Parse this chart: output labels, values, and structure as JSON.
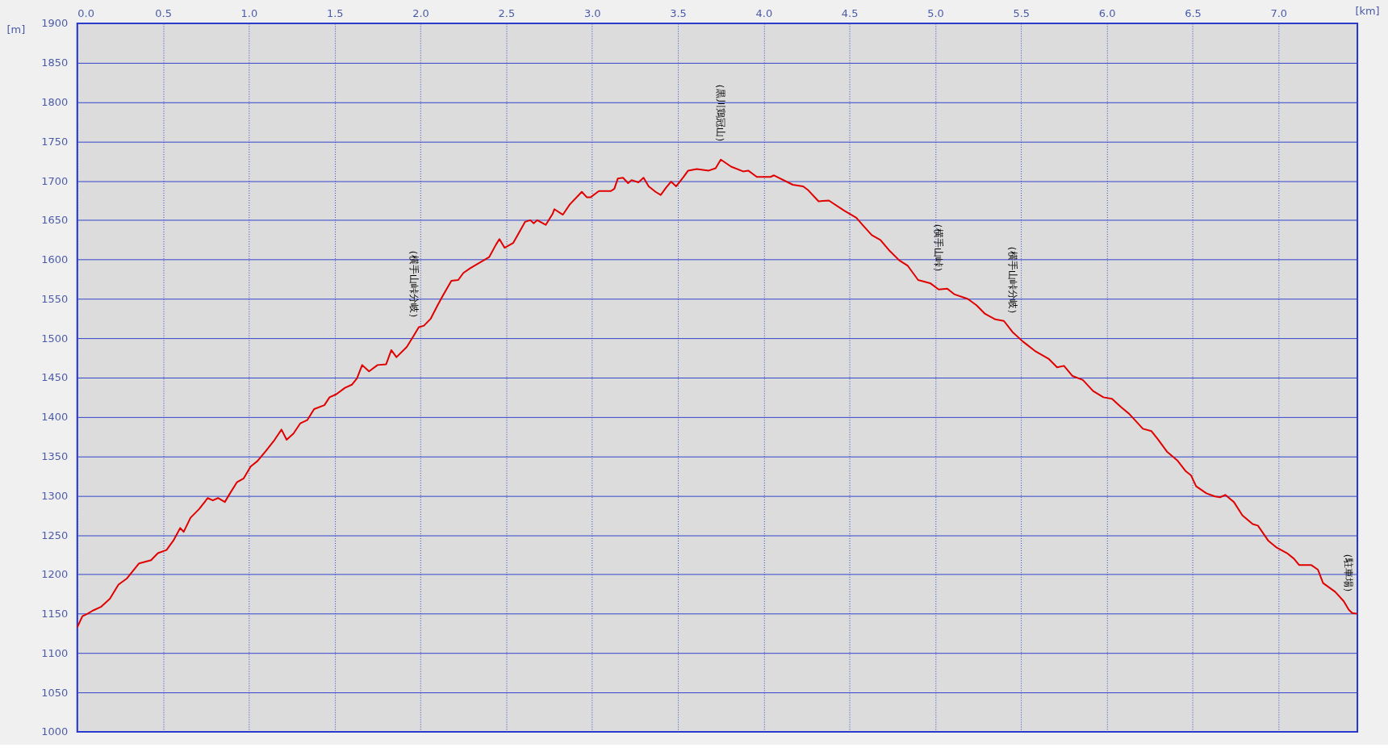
{
  "chart_data": {
    "type": "line",
    "xlabel": "[km]",
    "ylabel": "[m]",
    "x": [
      0.0,
      0.03,
      0.06,
      0.09,
      0.14,
      0.19,
      0.24,
      0.29,
      0.36,
      0.43,
      0.47,
      0.52,
      0.56,
      0.6,
      0.62,
      0.66,
      0.71,
      0.76,
      0.79,
      0.82,
      0.86,
      0.89,
      0.93,
      0.97,
      1.01,
      1.05,
      1.1,
      1.15,
      1.19,
      1.22,
      1.26,
      1.3,
      1.34,
      1.38,
      1.44,
      1.47,
      1.51,
      1.56,
      1.6,
      1.63,
      1.66,
      1.7,
      1.75,
      1.8,
      1.83,
      1.86,
      1.92,
      1.96,
      1.99,
      2.02,
      2.06,
      2.1,
      2.13,
      2.18,
      2.22,
      2.25,
      2.29,
      2.36,
      2.4,
      2.44,
      2.46,
      2.49,
      2.54,
      2.61,
      2.64,
      2.66,
      2.68,
      2.73,
      2.77,
      2.78,
      2.83,
      2.87,
      2.94,
      2.97,
      2.99,
      3.04,
      3.11,
      3.13,
      3.15,
      3.18,
      3.21,
      3.23,
      3.27,
      3.3,
      3.33,
      3.37,
      3.4,
      3.43,
      3.46,
      3.49,
      3.53,
      3.56,
      3.61,
      3.68,
      3.72,
      3.75,
      3.81,
      3.88,
      3.91,
      3.96,
      4.04,
      4.06,
      4.17,
      4.23,
      4.26,
      4.32,
      4.38,
      4.47,
      4.54,
      4.58,
      4.63,
      4.68,
      4.73,
      4.79,
      4.84,
      4.9,
      4.97,
      5.02,
      5.07,
      5.11,
      5.19,
      5.24,
      5.29,
      5.35,
      5.4,
      5.45,
      5.51,
      5.58,
      5.66,
      5.71,
      5.75,
      5.8,
      5.86,
      5.92,
      5.98,
      6.03,
      6.08,
      6.13,
      6.21,
      6.26,
      6.3,
      6.35,
      6.41,
      6.46,
      6.49,
      6.52,
      6.58,
      6.63,
      6.66,
      6.69,
      6.74,
      6.79,
      6.85,
      6.88,
      6.94,
      6.99,
      7.05,
      7.09,
      7.12,
      7.19,
      7.23,
      7.26,
      7.33,
      7.38,
      7.41,
      7.43,
      7.46
    ],
    "series": [
      {
        "color": "#e00000",
        "values": [
          1133,
          1147,
          1150,
          1154,
          1159,
          1169,
          1187,
          1195,
          1214,
          1218,
          1227,
          1231,
          1243,
          1259,
          1254,
          1272,
          1283,
          1297,
          1294,
          1297,
          1292,
          1303,
          1317,
          1322,
          1337,
          1344,
          1357,
          1371,
          1384,
          1371,
          1379,
          1392,
          1396,
          1410,
          1415,
          1425,
          1429,
          1437,
          1441,
          1449,
          1466,
          1458,
          1466,
          1467,
          1485,
          1476,
          1489,
          1503,
          1514,
          1516,
          1525,
          1542,
          1554,
          1573,
          1574,
          1583,
          1589,
          1598,
          1603,
          1619,
          1626,
          1615,
          1621,
          1648,
          1650,
          1646,
          1650,
          1644,
          1658,
          1664,
          1657,
          1670,
          1686,
          1679,
          1679,
          1687,
          1687,
          1690,
          1703,
          1704,
          1697,
          1701,
          1698,
          1704,
          1693,
          1686,
          1682,
          1691,
          1699,
          1693,
          1704,
          1713,
          1715,
          1713,
          1716,
          1727,
          1718,
          1712,
          1713,
          1705,
          1705,
          1707,
          1695,
          1693,
          1688,
          1674,
          1675,
          1662,
          1653,
          1643,
          1631,
          1625,
          1612,
          1599,
          1592,
          1574,
          1570,
          1562,
          1563,
          1556,
          1550,
          1542,
          1531,
          1524,
          1522,
          1508,
          1496,
          1484,
          1474,
          1463,
          1465,
          1452,
          1447,
          1433,
          1425,
          1423,
          1413,
          1404,
          1385,
          1382,
          1371,
          1356,
          1345,
          1331,
          1326,
          1312,
          1303,
          1299,
          1298,
          1301,
          1292,
          1275,
          1264,
          1262,
          1243,
          1234,
          1227,
          1220,
          1212,
          1212,
          1206,
          1189,
          1178,
          1166,
          1155,
          1151,
          1150
        ]
      }
    ],
    "xlim": [
      0,
      7.46
    ],
    "ylim": [
      1000,
      1900
    ],
    "xticks": [
      {
        "value": 0,
        "label": "0.0"
      },
      0.5,
      {
        "value": 1,
        "label": "1.0"
      },
      1.5,
      {
        "value": 2,
        "label": "2.0"
      },
      2.5,
      {
        "value": 3,
        "label": "3.0"
      },
      3.5,
      {
        "value": 4,
        "label": "4.0"
      },
      4.5,
      {
        "value": 5,
        "label": "5.0"
      },
      5.5,
      {
        "value": 6,
        "label": "6.0"
      },
      6.5,
      {
        "value": 7,
        "label": "7.0"
      }
    ],
    "yticks": [
      1000,
      1050,
      1100,
      1150,
      1200,
      1250,
      1300,
      1350,
      1400,
      1450,
      1500,
      1550,
      1600,
      1650,
      1700,
      1750,
      1800,
      1850,
      1900
    ],
    "annotations": [
      {
        "text": "（横手山峠分岐）",
        "x": 1.96,
        "y": 1503
      },
      {
        "text": "（黒川鶏冠山）",
        "x": 3.75,
        "y": 1727
      },
      {
        "text": "（横手山峠）",
        "x": 5.02,
        "y": 1562
      },
      {
        "text": "（横手山峠分岐）",
        "x": 5.45,
        "y": 1508
      },
      {
        "text": "（駐車場）",
        "x": 7.41,
        "y": 1155
      }
    ],
    "grid": true,
    "line_style": "solid"
  }
}
